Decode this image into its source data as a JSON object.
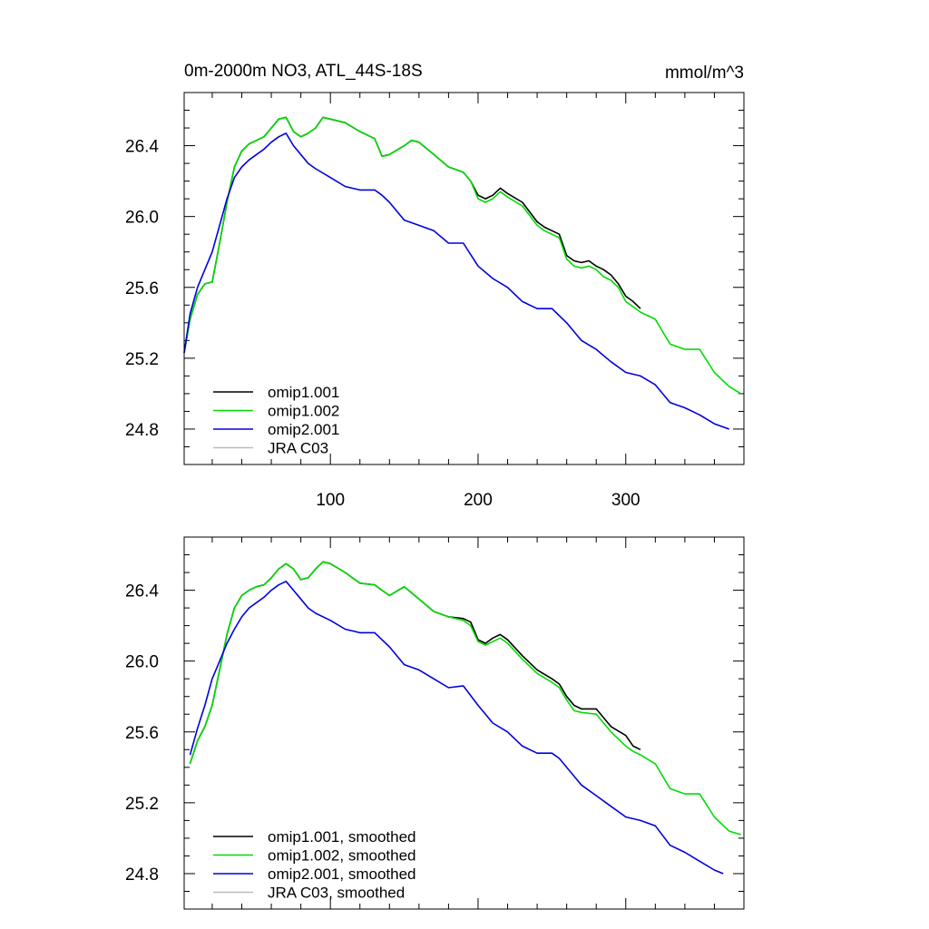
{
  "units_label": "mmol/m^3",
  "chart_data": [
    {
      "type": "line",
      "title": "0m-2000m NO3, ATL_44S-18S",
      "xlabel": "",
      "ylabel": "",
      "xlim": [
        1,
        380
      ],
      "ylim": [
        24.6,
        26.7
      ],
      "x_ticks": [
        100,
        200,
        300
      ],
      "x_tick_labels": [
        "100",
        "200",
        "300"
      ],
      "y_ticks": [
        24.8,
        25.2,
        25.6,
        26.0,
        26.4
      ],
      "y_tick_labels": [
        "24.8",
        "25.2",
        "25.6",
        "26.0",
        "26.4"
      ],
      "legend_position": "bottom-left",
      "series": [
        {
          "name": "omip1.001",
          "color": "#000000",
          "x": [
            1,
            5,
            10,
            15,
            20,
            25,
            30,
            35,
            40,
            45,
            50,
            55,
            60,
            65,
            70,
            75,
            80,
            85,
            90,
            95,
            100,
            110,
            120,
            130,
            135,
            140,
            150,
            155,
            160,
            170,
            180,
            190,
            195,
            200,
            205,
            210,
            215,
            220,
            230,
            240,
            245,
            250,
            255,
            260,
            265,
            270,
            275,
            280,
            285,
            290,
            295,
            300,
            305,
            310
          ],
          "values": [
            25.23,
            25.42,
            25.56,
            25.62,
            25.63,
            25.85,
            26.08,
            26.28,
            26.37,
            26.41,
            26.43,
            26.45,
            26.5,
            26.55,
            26.56,
            26.48,
            26.45,
            26.47,
            26.5,
            26.56,
            26.55,
            26.53,
            26.48,
            26.44,
            26.34,
            26.35,
            26.4,
            26.43,
            26.42,
            26.35,
            26.28,
            26.25,
            26.2,
            26.12,
            26.1,
            26.12,
            26.16,
            26.13,
            26.08,
            25.97,
            25.94,
            25.92,
            25.9,
            25.78,
            25.75,
            25.74,
            25.75,
            25.72,
            25.7,
            25.67,
            25.62,
            25.55,
            25.52,
            25.48
          ]
        },
        {
          "name": "omip1.002",
          "color": "#00dd00",
          "x": [
            1,
            5,
            10,
            15,
            20,
            25,
            30,
            35,
            40,
            45,
            50,
            55,
            60,
            65,
            70,
            75,
            80,
            85,
            90,
            95,
            100,
            110,
            120,
            130,
            135,
            140,
            150,
            155,
            160,
            170,
            180,
            190,
            195,
            200,
            205,
            210,
            215,
            220,
            230,
            240,
            245,
            250,
            255,
            260,
            265,
            270,
            275,
            280,
            285,
            290,
            295,
            300,
            305,
            310,
            320,
            330,
            340,
            350,
            360,
            370,
            378
          ],
          "values": [
            25.23,
            25.42,
            25.56,
            25.62,
            25.63,
            25.85,
            26.08,
            26.28,
            26.37,
            26.41,
            26.43,
            26.45,
            26.5,
            26.55,
            26.56,
            26.48,
            26.45,
            26.47,
            26.5,
            26.56,
            26.55,
            26.53,
            26.48,
            26.44,
            26.34,
            26.35,
            26.4,
            26.43,
            26.42,
            26.35,
            26.28,
            26.25,
            26.2,
            26.1,
            26.08,
            26.1,
            26.14,
            26.11,
            26.06,
            25.95,
            25.92,
            25.9,
            25.88,
            25.76,
            25.72,
            25.71,
            25.72,
            25.7,
            25.66,
            25.64,
            25.6,
            25.52,
            25.49,
            25.46,
            25.42,
            25.28,
            25.25,
            25.25,
            25.12,
            25.04,
            25.0
          ]
        },
        {
          "name": "omip2.001",
          "color": "#0000dd",
          "x": [
            1,
            5,
            10,
            15,
            20,
            25,
            30,
            35,
            40,
            45,
            50,
            55,
            60,
            65,
            70,
            75,
            80,
            85,
            90,
            100,
            110,
            120,
            130,
            135,
            140,
            150,
            160,
            170,
            180,
            190,
            200,
            210,
            220,
            230,
            240,
            250,
            255,
            260,
            270,
            280,
            290,
            300,
            310,
            320,
            330,
            340,
            350,
            360,
            370
          ],
          "values": [
            25.23,
            25.45,
            25.6,
            25.7,
            25.8,
            25.95,
            26.1,
            26.22,
            26.28,
            26.32,
            26.35,
            26.38,
            26.42,
            26.45,
            26.47,
            26.4,
            26.35,
            26.3,
            26.27,
            26.22,
            26.17,
            26.15,
            26.15,
            26.12,
            26.08,
            25.98,
            25.95,
            25.92,
            25.85,
            25.85,
            25.72,
            25.65,
            25.6,
            25.52,
            25.48,
            25.48,
            25.44,
            25.4,
            25.3,
            25.25,
            25.18,
            25.12,
            25.1,
            25.05,
            24.95,
            24.92,
            24.88,
            24.83,
            24.8
          ]
        },
        {
          "name": "JRA C03",
          "color": "#bbbbbb",
          "x": [],
          "values": []
        }
      ]
    },
    {
      "type": "line",
      "title": "",
      "xlabel": "",
      "ylabel": "",
      "xlim": [
        1,
        380
      ],
      "ylim": [
        24.6,
        26.7
      ],
      "x_ticks": [
        100,
        200,
        300
      ],
      "x_tick_labels": [],
      "y_ticks": [
        24.8,
        25.2,
        25.6,
        26.0,
        26.4
      ],
      "y_tick_labels": [
        "24.8",
        "25.2",
        "25.6",
        "26.0",
        "26.4"
      ],
      "legend_position": "bottom-left",
      "series": [
        {
          "name": "omip1.001, smoothed",
          "color": "#000000",
          "x": [
            5,
            10,
            15,
            20,
            25,
            30,
            35,
            40,
            45,
            50,
            55,
            60,
            65,
            70,
            75,
            80,
            85,
            90,
            95,
            100,
            110,
            120,
            130,
            135,
            140,
            150,
            160,
            170,
            180,
            190,
            195,
            200,
            205,
            210,
            215,
            220,
            230,
            240,
            250,
            255,
            260,
            265,
            270,
            280,
            290,
            300,
            305,
            310
          ],
          "values": [
            25.42,
            25.55,
            25.63,
            25.75,
            25.95,
            26.15,
            26.3,
            26.37,
            26.4,
            26.42,
            26.43,
            26.47,
            26.52,
            26.55,
            26.52,
            26.46,
            26.47,
            26.52,
            26.56,
            26.55,
            26.5,
            26.44,
            26.43,
            26.4,
            26.37,
            26.42,
            26.35,
            26.28,
            26.25,
            26.24,
            26.22,
            26.12,
            26.1,
            26.13,
            26.15,
            26.12,
            26.03,
            25.95,
            25.9,
            25.87,
            25.8,
            25.75,
            25.73,
            25.73,
            25.63,
            25.58,
            25.52,
            25.5
          ]
        },
        {
          "name": "omip1.002, smoothed",
          "color": "#00dd00",
          "x": [
            5,
            10,
            15,
            20,
            25,
            30,
            35,
            40,
            45,
            50,
            55,
            60,
            65,
            70,
            75,
            80,
            85,
            90,
            95,
            100,
            110,
            120,
            130,
            135,
            140,
            150,
            160,
            170,
            180,
            190,
            195,
            200,
            205,
            210,
            215,
            220,
            230,
            240,
            250,
            255,
            260,
            265,
            270,
            280,
            290,
            300,
            305,
            310,
            320,
            330,
            340,
            350,
            360,
            370,
            378
          ],
          "values": [
            25.42,
            25.55,
            25.63,
            25.75,
            25.95,
            26.15,
            26.3,
            26.37,
            26.4,
            26.42,
            26.43,
            26.47,
            26.52,
            26.55,
            26.52,
            26.46,
            26.47,
            26.52,
            26.56,
            26.55,
            26.5,
            26.44,
            26.43,
            26.4,
            26.37,
            26.42,
            26.35,
            26.28,
            26.25,
            26.23,
            26.2,
            26.11,
            26.09,
            26.11,
            26.13,
            26.1,
            26.01,
            25.93,
            25.88,
            25.85,
            25.78,
            25.72,
            25.71,
            25.7,
            25.6,
            25.52,
            25.49,
            25.47,
            25.42,
            25.28,
            25.25,
            25.25,
            25.12,
            25.04,
            25.02
          ]
        },
        {
          "name": "omip2.001, smoothed",
          "color": "#0000dd",
          "x": [
            5,
            10,
            15,
            20,
            25,
            30,
            35,
            40,
            45,
            50,
            55,
            60,
            65,
            70,
            75,
            80,
            85,
            90,
            100,
            110,
            120,
            130,
            135,
            140,
            150,
            160,
            170,
            180,
            190,
            200,
            210,
            220,
            230,
            240,
            250,
            255,
            260,
            270,
            280,
            290,
            300,
            310,
            320,
            330,
            340,
            350,
            360,
            366
          ],
          "values": [
            25.47,
            25.62,
            25.75,
            25.9,
            26.0,
            26.1,
            26.18,
            26.25,
            26.3,
            26.33,
            26.36,
            26.4,
            26.43,
            26.45,
            26.4,
            26.35,
            26.3,
            26.27,
            26.23,
            26.18,
            26.16,
            26.16,
            26.12,
            26.08,
            25.98,
            25.95,
            25.9,
            25.85,
            25.86,
            25.75,
            25.65,
            25.6,
            25.52,
            25.48,
            25.48,
            25.45,
            25.4,
            25.3,
            25.24,
            25.18,
            25.12,
            25.1,
            25.07,
            24.96,
            24.92,
            24.87,
            24.82,
            24.8
          ]
        },
        {
          "name": "JRA C03, smoothed",
          "color": "#bbbbbb",
          "x": [],
          "values": []
        }
      ]
    }
  ]
}
